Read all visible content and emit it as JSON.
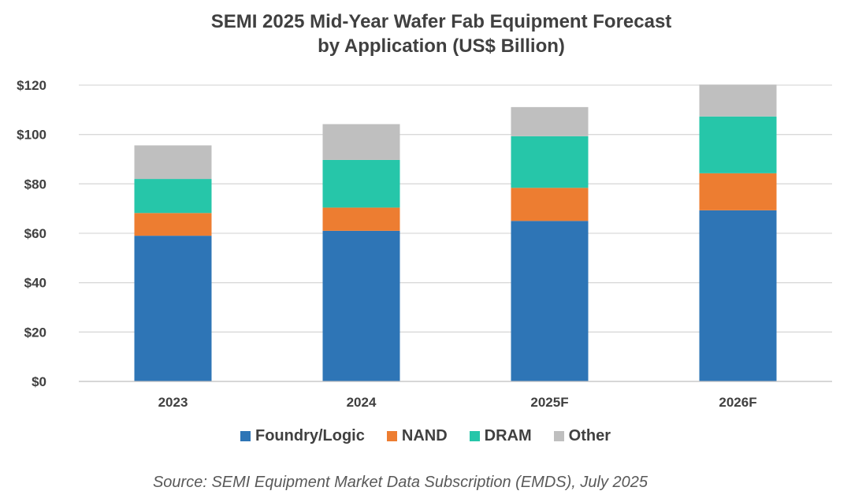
{
  "chart_data": {
    "type": "bar",
    "stacked": true,
    "title_lines": [
      "SEMI 2025 Mid-Year Wafer Fab Equipment Forecast",
      "by Application (US$ Billion)"
    ],
    "categories": [
      "2023",
      "2024",
      "2025F",
      "2026F"
    ],
    "series": [
      {
        "name": "Foundry/Logic",
        "color": "#2e75b6",
        "values": [
          59.0,
          61.0,
          65.0,
          69.3
        ]
      },
      {
        "name": "NAND",
        "color": "#ed7d31",
        "values": [
          9.2,
          9.4,
          13.4,
          15.0
        ]
      },
      {
        "name": "DRAM",
        "color": "#26c6a9",
        "values": [
          13.8,
          19.3,
          20.9,
          23.0
        ]
      },
      {
        "name": "Other",
        "color": "#bfbfbf",
        "values": [
          13.6,
          14.5,
          11.8,
          12.9
        ]
      }
    ],
    "y_ticks": [
      "$0",
      "$20",
      "$40",
      "$60",
      "$80",
      "$100",
      "$120"
    ],
    "y_tick_values": [
      0,
      20,
      40,
      60,
      80,
      100,
      120
    ],
    "ylim": [
      0,
      120
    ],
    "grid": true,
    "legend_placement": "bottom",
    "source": "Source: SEMI Equipment Market Data Subscription (EMDS), July 2025"
  },
  "colors": {
    "gridline": "#d9d9d9",
    "axis": "#bfbfbf",
    "text": "#404040"
  }
}
